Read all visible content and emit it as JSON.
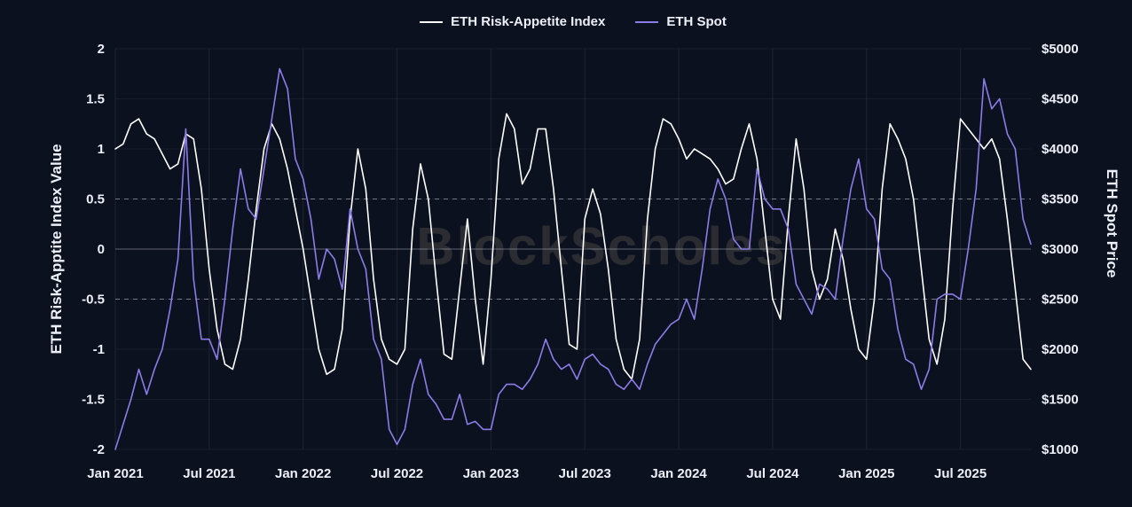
{
  "watermark": "BlockScholes",
  "legend": [
    {
      "label": "ETH Risk-Appetite Index",
      "color": "#ffffff"
    },
    {
      "label": "ETH Spot",
      "color": "#8b7ce8"
    }
  ],
  "colors": {
    "background": "#0c1120",
    "text": "#edf0f7",
    "grid": "rgba(255,255,255,0.08)",
    "grid_faint": "rgba(255,255,255,0.05)",
    "dashed_line": "rgba(196,200,212,0.55)",
    "zero_line": "rgba(196,200,212,0.42)",
    "risk_line": "#ffffff",
    "spot_line": "#8b7ce8"
  },
  "left_axis": {
    "title": "ETH Risk-Apptite Index Value",
    "min": -2,
    "max": 2,
    "dashed_at": [
      0.5,
      -0.5
    ],
    "zero_at": 0,
    "ticks": [
      {
        "v": 2,
        "label": "2"
      },
      {
        "v": 1.5,
        "label": "1.5"
      },
      {
        "v": 1,
        "label": "1"
      },
      {
        "v": 0.5,
        "label": "0.5"
      },
      {
        "v": 0,
        "label": "0"
      },
      {
        "v": -0.5,
        "label": "-0.5"
      },
      {
        "v": -1,
        "label": "-1"
      },
      {
        "v": -1.5,
        "label": "-1.5"
      },
      {
        "v": -2,
        "label": "-2"
      }
    ]
  },
  "right_axis": {
    "title": "ETH Spot Price",
    "min": 1000,
    "max": 5000,
    "ticks": [
      {
        "v": 5000,
        "label": "$5000"
      },
      {
        "v": 4500,
        "label": "$4500"
      },
      {
        "v": 4000,
        "label": "$4000"
      },
      {
        "v": 3500,
        "label": "$3500"
      },
      {
        "v": 3000,
        "label": "$3000"
      },
      {
        "v": 2500,
        "label": "$2500"
      },
      {
        "v": 2000,
        "label": "$2000"
      },
      {
        "v": 1500,
        "label": "$1500"
      },
      {
        "v": 1000,
        "label": "$1000"
      }
    ]
  },
  "x_axis": {
    "ticks": [
      {
        "x": "2021-01-01",
        "label": "Jan 2021"
      },
      {
        "x": "2021-07-01",
        "label": "Jul 2021"
      },
      {
        "x": "2022-01-01",
        "label": "Jan 2022"
      },
      {
        "x": "2022-07-01",
        "label": "Jul 2022"
      },
      {
        "x": "2023-01-01",
        "label": "Jan 2023"
      },
      {
        "x": "2023-07-01",
        "label": "Jul 2023"
      },
      {
        "x": "2024-01-01",
        "label": "Jan 2024"
      },
      {
        "x": "2024-07-01",
        "label": "Jul 2024"
      },
      {
        "x": "2025-01-01",
        "label": "Jan 2025"
      },
      {
        "x": "2025-07-01",
        "label": "Jul 2025"
      }
    ]
  },
  "chart_data": {
    "type": "line",
    "legend_position": "top",
    "grid": true,
    "left_axis_label": "ETH Risk-Apptite Index Value",
    "right_axis_label": "ETH Spot Price",
    "left_ylim": [
      -2,
      2
    ],
    "right_ylim": [
      1000,
      5000
    ],
    "x_tick_labels": [
      "Jan 2021",
      "Jul 2021",
      "Jan 2022",
      "Jul 2022",
      "Jan 2023",
      "Jul 2023",
      "Jan 2024",
      "Jul 2024",
      "Jan 2025",
      "Jul 2025"
    ],
    "x": [
      "2021-01-01",
      "2021-01-15",
      "2021-02-01",
      "2021-02-15",
      "2021-03-01",
      "2021-03-15",
      "2021-04-01",
      "2021-04-15",
      "2021-05-01",
      "2021-05-15",
      "2021-06-01",
      "2021-06-15",
      "2021-07-01",
      "2021-07-15",
      "2021-08-01",
      "2021-08-15",
      "2021-09-01",
      "2021-09-15",
      "2021-10-01",
      "2021-10-15",
      "2021-11-01",
      "2021-11-15",
      "2021-12-01",
      "2021-12-15",
      "2022-01-01",
      "2022-01-15",
      "2022-02-01",
      "2022-02-15",
      "2022-03-01",
      "2022-03-15",
      "2022-04-01",
      "2022-04-15",
      "2022-05-01",
      "2022-05-15",
      "2022-06-01",
      "2022-06-15",
      "2022-07-01",
      "2022-07-15",
      "2022-08-01",
      "2022-08-15",
      "2022-09-01",
      "2022-09-15",
      "2022-10-01",
      "2022-10-15",
      "2022-11-01",
      "2022-11-15",
      "2022-12-01",
      "2022-12-15",
      "2023-01-01",
      "2023-01-15",
      "2023-02-01",
      "2023-02-15",
      "2023-03-01",
      "2023-03-15",
      "2023-04-01",
      "2023-04-15",
      "2023-05-01",
      "2023-05-15",
      "2023-06-01",
      "2023-06-15",
      "2023-07-01",
      "2023-07-15",
      "2023-08-01",
      "2023-08-15",
      "2023-09-01",
      "2023-09-15",
      "2023-10-01",
      "2023-10-15",
      "2023-11-01",
      "2023-11-15",
      "2023-12-01",
      "2023-12-15",
      "2024-01-01",
      "2024-01-15",
      "2024-02-01",
      "2024-02-15",
      "2024-03-01",
      "2024-03-15",
      "2024-04-01",
      "2024-04-15",
      "2024-05-01",
      "2024-05-15",
      "2024-06-01",
      "2024-06-15",
      "2024-07-01",
      "2024-07-15",
      "2024-08-01",
      "2024-08-15",
      "2024-09-01",
      "2024-09-15",
      "2024-10-01",
      "2024-10-15",
      "2024-11-01",
      "2024-11-15",
      "2024-12-01",
      "2024-12-15",
      "2025-01-01",
      "2025-01-15",
      "2025-02-01",
      "2025-02-15",
      "2025-03-01",
      "2025-03-15",
      "2025-04-01",
      "2025-04-15",
      "2025-05-01",
      "2025-05-15",
      "2025-06-01",
      "2025-06-15",
      "2025-07-01",
      "2025-07-15",
      "2025-08-01",
      "2025-08-15",
      "2025-09-01",
      "2025-09-15",
      "2025-10-01",
      "2025-10-15",
      "2025-11-01",
      "2025-11-15"
    ],
    "series": [
      {
        "name": "ETH Risk-Appetite Index",
        "axis": "left",
        "color": "#ffffff",
        "values": [
          1.0,
          1.05,
          1.25,
          1.3,
          1.15,
          1.1,
          0.95,
          0.8,
          0.85,
          1.15,
          1.1,
          0.6,
          -0.2,
          -0.8,
          -1.15,
          -1.2,
          -0.9,
          -0.3,
          0.4,
          1.0,
          1.25,
          1.1,
          0.8,
          0.4,
          0.0,
          -0.5,
          -1.0,
          -1.25,
          -1.2,
          -0.8,
          0.3,
          1.0,
          0.6,
          -0.3,
          -0.9,
          -1.1,
          -1.15,
          -1.0,
          0.2,
          0.85,
          0.5,
          -0.3,
          -1.05,
          -1.1,
          -0.4,
          0.3,
          -0.5,
          -1.15,
          -0.3,
          0.9,
          1.35,
          1.2,
          0.65,
          0.8,
          1.2,
          1.2,
          0.6,
          -0.2,
          -0.95,
          -1.0,
          0.3,
          0.6,
          0.35,
          -0.2,
          -0.9,
          -1.2,
          -1.3,
          -0.9,
          0.3,
          1.0,
          1.3,
          1.25,
          1.1,
          0.9,
          1.0,
          0.95,
          0.9,
          0.8,
          0.65,
          0.7,
          1.0,
          1.25,
          0.9,
          0.2,
          -0.5,
          -0.7,
          0.3,
          1.1,
          0.6,
          -0.2,
          -0.5,
          -0.3,
          0.2,
          -0.1,
          -0.6,
          -1.0,
          -1.1,
          -0.5,
          0.6,
          1.25,
          1.1,
          0.9,
          0.5,
          -0.2,
          -0.9,
          -1.15,
          -0.7,
          0.4,
          1.3,
          1.2,
          1.1,
          1.0,
          1.1,
          0.9,
          0.3,
          -0.4,
          -1.1,
          -1.2
        ]
      },
      {
        "name": "ETH Spot",
        "axis": "right",
        "color": "#8b7ce8",
        "values": [
          1000,
          1250,
          1500,
          1800,
          1550,
          1800,
          2000,
          2400,
          2900,
          4200,
          2700,
          2100,
          2100,
          1900,
          2500,
          3200,
          3800,
          3400,
          3300,
          3800,
          4300,
          4800,
          4600,
          3900,
          3700,
          3300,
          2700,
          3000,
          2900,
          2600,
          3400,
          3000,
          2800,
          2100,
          1900,
          1200,
          1050,
          1200,
          1650,
          1900,
          1550,
          1450,
          1300,
          1300,
          1550,
          1250,
          1280,
          1200,
          1200,
          1550,
          1650,
          1650,
          1600,
          1700,
          1850,
          2100,
          1900,
          1800,
          1850,
          1700,
          1900,
          1950,
          1850,
          1800,
          1650,
          1600,
          1700,
          1600,
          1850,
          2050,
          2150,
          2250,
          2300,
          2500,
          2300,
          2800,
          3400,
          3700,
          3500,
          3100,
          3000,
          3000,
          3800,
          3500,
          3400,
          3400,
          3200,
          2650,
          2500,
          2350,
          2650,
          2600,
          2500,
          3100,
          3600,
          3900,
          3400,
          3300,
          2800,
          2700,
          2200,
          1900,
          1850,
          1600,
          1800,
          2500,
          2550,
          2550,
          2500,
          3000,
          3600,
          4700,
          4400,
          4500,
          4150,
          4000,
          3300,
          3050
        ]
      }
    ]
  }
}
